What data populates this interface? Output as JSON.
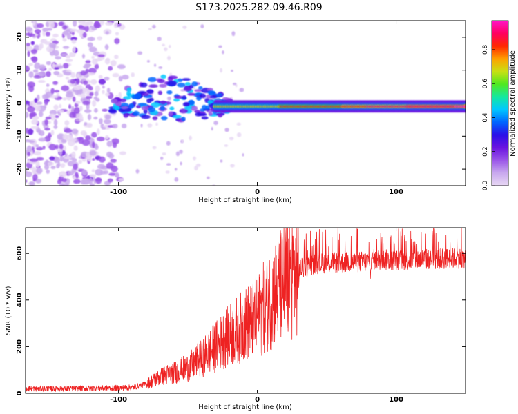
{
  "title": "S173.2025.282.09.46.R09",
  "colors": {
    "snr_line": "#ee2222",
    "spec_background": "#ffffff",
    "colormap": [
      "#e8d8f4",
      "#c8a8ee",
      "#9a55e8",
      "#6a14e0",
      "#2a10e8",
      "#0066ff",
      "#00c8ff",
      "#14e8a0",
      "#50e820",
      "#c8e014",
      "#ffa000",
      "#ff2800",
      "#ff0060",
      "#ff14c8"
    ]
  },
  "chart_data": [
    {
      "type": "heatmap",
      "name": "spectrogram",
      "xlabel": "Height of straight line (km)",
      "ylabel": "Frequency (Hz)",
      "xlim": [
        -167,
        150
      ],
      "ylim": [
        -25,
        25
      ],
      "xticks": [
        -100,
        0,
        100
      ],
      "xtick_labels": [
        "-100",
        "0",
        "100"
      ],
      "yticks": [
        -20,
        -10,
        0,
        10,
        20
      ],
      "ytick_labels": [
        "-20",
        "-10",
        "0",
        "10",
        "20"
      ],
      "description_values": {
        "carrier_frequency_hz": -1,
        "carrier_start_km": -30,
        "noise_region_km": [
          -167,
          -90
        ]
      },
      "colorbar": {
        "label": "Normalized spectral amplitude",
        "range": [
          0,
          0.97
        ],
        "ticks": [
          0.0,
          0.2,
          0.4,
          0.6,
          0.8
        ],
        "tick_labels": [
          "0.0",
          "0.2",
          "0.4",
          "0.6",
          "0.8"
        ]
      }
    },
    {
      "type": "line",
      "name": "snr",
      "xlabel": "Height of straight line (km)",
      "ylabel": "SNR (10 * v/v)",
      "xlim": [
        -167,
        150
      ],
      "ylim": [
        0,
        710
      ],
      "xticks": [
        -100,
        0,
        100
      ],
      "xtick_labels": [
        "-100",
        "0",
        "100"
      ],
      "yticks": [
        0,
        200,
        400,
        600
      ],
      "ytick_labels": [
        "0",
        "200",
        "400",
        "600"
      ],
      "series": [
        {
          "name": "SNR",
          "x": [
            -167,
            -140,
            -110,
            -90,
            -80,
            -70,
            -60,
            -50,
            -40,
            -30,
            -20,
            -10,
            0,
            10,
            20,
            30,
            40,
            60,
            80,
            81,
            82,
            100,
            120,
            150
          ],
          "y": [
            20,
            20,
            22,
            25,
            40,
            70,
            90,
            110,
            150,
            200,
            250,
            290,
            330,
            410,
            480,
            530,
            555,
            560,
            565,
            500,
            575,
            570,
            575,
            580
          ]
        }
      ]
    }
  ]
}
